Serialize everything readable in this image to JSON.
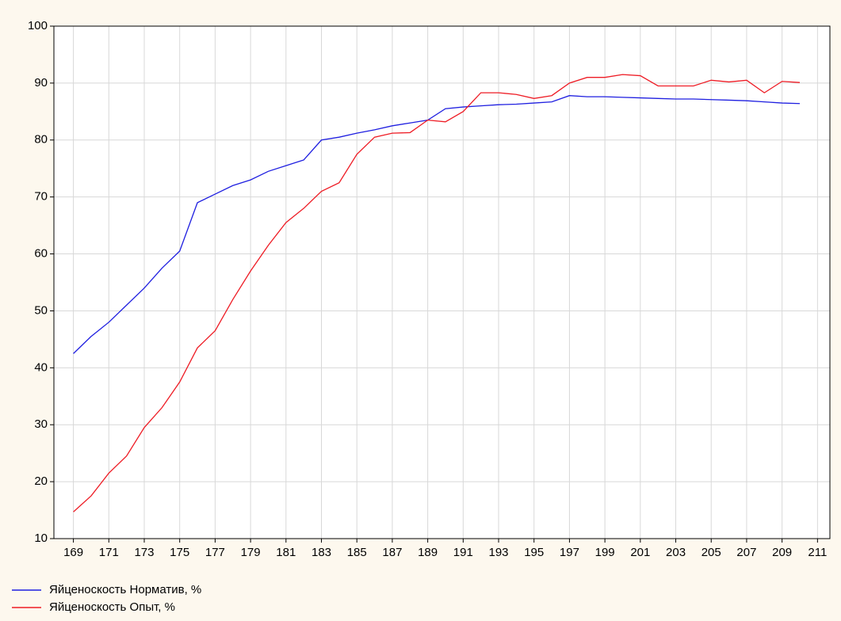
{
  "chart_data": {
    "type": "line",
    "x": [
      169,
      170,
      171,
      172,
      173,
      174,
      175,
      176,
      177,
      178,
      179,
      180,
      181,
      182,
      183,
      184,
      185,
      186,
      187,
      188,
      189,
      190,
      191,
      192,
      193,
      194,
      195,
      196,
      197,
      198,
      199,
      200,
      201,
      202,
      203,
      204,
      205,
      206,
      207,
      208,
      209,
      210
    ],
    "series": [
      {
        "name": "Яйценоскость Норматив, %",
        "color": "#1f1fe0",
        "values": [
          42.5,
          45.5,
          48,
          51,
          54,
          57.5,
          60.5,
          69,
          70.5,
          72,
          73,
          74.5,
          75.5,
          76.5,
          80,
          80.5,
          81.2,
          81.8,
          82.5,
          83,
          83.5,
          85.5,
          85.8,
          86,
          86.2,
          86.3,
          86.5,
          86.7,
          87.8,
          87.6,
          87.6,
          87.5,
          87.4,
          87.3,
          87.2,
          87.2,
          87.1,
          87,
          86.9,
          86.7,
          86.5,
          86.4
        ]
      },
      {
        "name": "Яйценоскость Опыт, %",
        "color": "#ee1c25",
        "values": [
          14.7,
          17.5,
          21.5,
          24.5,
          29.5,
          33,
          37.5,
          43.5,
          46.5,
          52,
          57,
          61.5,
          65.5,
          68,
          71,
          72.5,
          77.5,
          80.5,
          81.2,
          81.3,
          83.5,
          83.2,
          85,
          88.3,
          88.3,
          88,
          87.3,
          87.8,
          90,
          91,
          91,
          91.5,
          91.3,
          89.5,
          89.5,
          89.5,
          90.5,
          90.2,
          90.5,
          88.3,
          90.3,
          90.1
        ]
      }
    ],
    "xlim": [
      167.9,
      211.7
    ],
    "xticks": [
      169,
      171,
      173,
      175,
      177,
      179,
      181,
      183,
      185,
      187,
      189,
      191,
      193,
      195,
      197,
      199,
      201,
      203,
      205,
      207,
      209,
      211
    ],
    "ylim": [
      10,
      100
    ],
    "yticks": [
      10,
      20,
      30,
      40,
      50,
      60,
      70,
      80,
      90,
      100
    ],
    "grid": true,
    "legend": "bottom-left"
  }
}
